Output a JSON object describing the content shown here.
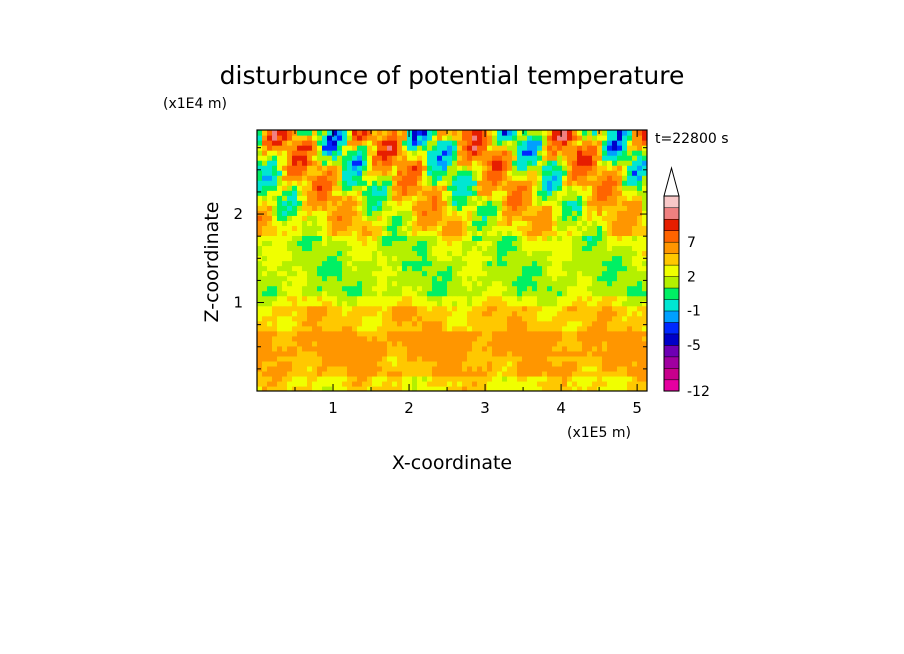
{
  "chart_data": {
    "type": "heatmap",
    "title": "disturbunce of potential temperature",
    "time_label": "t=22800 s",
    "xlabel": "X-coordinate",
    "ylabel": "Z-coordinate",
    "x_unit": "(x1E5 m)",
    "y_unit": "(x1E4 m)",
    "xlim": [
      0,
      5.13
    ],
    "ylim": [
      0,
      2.95
    ],
    "x_ticks": [
      1,
      2,
      3,
      4,
      5
    ],
    "y_ticks": [
      1,
      2
    ],
    "colorbar": {
      "levels": [
        -12,
        -11,
        -9,
        -7,
        -5,
        -4,
        -3,
        -1,
        0,
        1,
        2,
        3,
        5,
        7,
        9
      ],
      "labels": [
        "-12",
        "-5",
        "-1",
        "2",
        "7"
      ],
      "label_values": [
        -12,
        -5,
        -1,
        2,
        7
      ],
      "colors": [
        "#e600a0",
        "#c8008c",
        "#a000a0",
        "#6e00b4",
        "#0000c8",
        "#0028ff",
        "#00a0ff",
        "#00e6d2",
        "#00f064",
        "#b4f000",
        "#f0ff00",
        "#ffc800",
        "#ff9600",
        "#ff6400",
        "#e61e00",
        "#f08080",
        "#f8c8c8"
      ],
      "extend": "max"
    },
    "layers": [
      {
        "z_range": [
          0.0,
          0.15
        ],
        "level": 2
      },
      {
        "z_range": [
          0.15,
          0.4
        ],
        "level": 3
      },
      {
        "z_range": [
          0.4,
          0.7
        ],
        "level": 3.5
      },
      {
        "z_range": [
          0.7,
          0.95
        ],
        "level": 2.5
      },
      {
        "z_range": [
          0.95,
          1.1
        ],
        "level": 1.5
      },
      {
        "z_range": [
          1.1,
          1.45
        ],
        "level": 0.5
      },
      {
        "z_range": [
          1.45,
          1.75
        ],
        "level": 0.8
      },
      {
        "z_range": [
          1.75,
          2.95
        ],
        "level": 2
      }
    ]
  }
}
